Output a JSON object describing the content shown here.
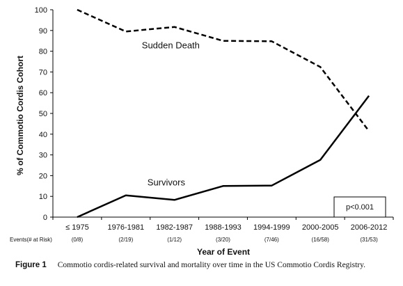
{
  "chart_data": {
    "type": "line",
    "categories": [
      "≤ 1975",
      "1976-1981",
      "1982-1987",
      "1988-1993",
      "1994-1999",
      "2000-2005",
      "2006-2012"
    ],
    "events_label": "Events(# at Risk)",
    "events": [
      "(0/8)",
      "(2/19)",
      "(1/12)",
      "(3/20)",
      "(7/46)",
      "(16/58)",
      "(31/53)"
    ],
    "series": [
      {
        "name": "Sudden Death",
        "values": [
          100,
          89.5,
          91.7,
          85,
          84.8,
          72.4,
          41.5
        ],
        "style": "dashed",
        "color": "#000000"
      },
      {
        "name": "Survivors",
        "values": [
          0,
          10.5,
          8.3,
          15,
          15.2,
          27.6,
          58.5
        ],
        "style": "solid",
        "color": "#000000"
      }
    ],
    "ylabel": "% of Commotio Cordis Cohort",
    "xlabel": "Year of Event",
    "ylim": [
      0,
      100
    ],
    "yticks": [
      0,
      10,
      20,
      30,
      40,
      50,
      60,
      70,
      80,
      90,
      100
    ],
    "grid": false,
    "annotation": "p<0.001"
  },
  "caption": {
    "label": "Figure 1",
    "text": "Commotio cordis-related survival and mortality over time in the US Commotio Cordis Registry."
  }
}
